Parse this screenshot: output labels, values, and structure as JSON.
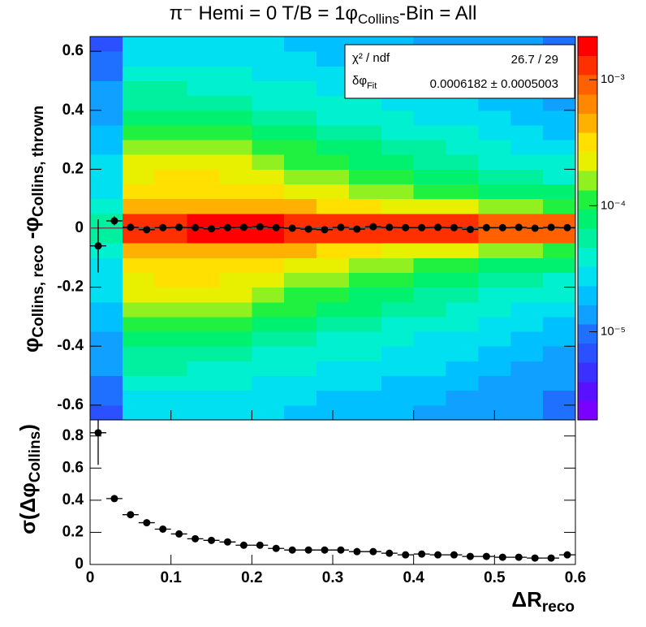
{
  "chart_data": [
    {
      "type": "heatmap",
      "title": [
        "π⁻ Hemi = 0 T/B = 1φ",
        "Collins",
        "-Bin = All"
      ],
      "ylabel": [
        "φ",
        "Collins, reco",
        " -φ",
        "Collins, thrown"
      ],
      "xlim": [
        0,
        0.6
      ],
      "ylim": [
        -0.65,
        0.65
      ],
      "xticks": [
        0,
        0.1,
        0.2,
        0.3,
        0.4,
        0.5,
        0.6
      ],
      "yticks": [
        -0.6,
        -0.4,
        -0.2,
        0,
        0.2,
        0.4,
        0.6
      ],
      "zlim": [
        2e-06,
        0.0022
      ],
      "zscale": "log",
      "zticks": [
        {
          "value": 1e-05,
          "label": "10⁻⁵"
        },
        {
          "value": 0.0001,
          "label": "10⁻⁴"
        },
        {
          "value": 0.001,
          "label": "10⁻³"
        }
      ],
      "palette": [
        "#7a00ff",
        "#5a10ff",
        "#3a30ff",
        "#2a50ff",
        "#2070ff",
        "#10a0ff",
        "#00c0ff",
        "#00e0f0",
        "#00f0d0",
        "#00f0a0",
        "#00f070",
        "#20f040",
        "#90f020",
        "#e8f000",
        "#ffe000",
        "#ffb000",
        "#ff8800",
        "#ff6000",
        "#ff3000",
        "#ff0000"
      ],
      "x_bins": [
        0,
        0.04,
        0.08,
        0.12,
        0.16,
        0.2,
        0.24,
        0.28,
        0.32,
        0.36,
        0.4,
        0.44,
        0.48,
        0.52,
        0.56,
        0.6
      ],
      "y_bins": [
        -0.65,
        -0.6,
        -0.55,
        -0.5,
        -0.45,
        -0.4,
        -0.35,
        -0.3,
        -0.25,
        -0.2,
        -0.15,
        -0.1,
        -0.05,
        0,
        0.05,
        0.1,
        0.15,
        0.2,
        0.25,
        0.3,
        0.35,
        0.4,
        0.45,
        0.5,
        0.55,
        0.6,
        0.65
      ],
      "z": [
        [
          8e-06,
          1e-05,
          1e-05,
          1.2e-05,
          1.5e-05,
          1.5e-05,
          2e-05,
          2e-05,
          2.5e-05,
          3e-05,
          3e-05,
          4e-05,
          5e-05,
          5e-05,
          4e-05,
          3e-05,
          3e-05,
          2.5e-05,
          2e-05,
          2e-05,
          1.5e-05,
          1.5e-05,
          1.2e-05,
          1e-05,
          1e-05,
          8e-06
        ],
        [
          3e-05,
          3e-05,
          4e-05,
          5e-05,
          6e-05,
          8e-05,
          0.0001,
          0.00015,
          0.0002,
          0.00025,
          0.0003,
          0.0004,
          0.0012,
          0.0012,
          0.0004,
          0.0003,
          0.00025,
          0.0002,
          0.00015,
          0.0001,
          8e-05,
          6e-05,
          5e-05,
          4e-05,
          3e-05,
          3e-05
        ],
        [
          3e-05,
          3e-05,
          4e-05,
          5e-05,
          6e-05,
          9e-05,
          0.00012,
          0.00018,
          0.00025,
          0.0003,
          0.00035,
          0.0005,
          0.0015,
          0.0015,
          0.0005,
          0.00035,
          0.0003,
          0.00025,
          0.00018,
          0.00012,
          9e-05,
          6e-05,
          5e-05,
          4e-05,
          3e-05,
          3e-05
        ],
        [
          3e-05,
          3e-05,
          4e-05,
          4.5e-05,
          6e-05,
          8e-05,
          0.00011,
          0.00016,
          0.00025,
          0.0003,
          0.00035,
          0.0005,
          0.0016,
          0.0016,
          0.0005,
          0.00035,
          0.0003,
          0.00025,
          0.00016,
          0.00011,
          8e-05,
          6e-05,
          4.5e-05,
          4e-05,
          3e-05,
          3e-05
        ],
        [
          2.5e-05,
          3e-05,
          3.5e-05,
          4e-05,
          5e-05,
          7e-05,
          0.0001,
          0.00015,
          0.0002,
          0.00025,
          0.00035,
          0.0005,
          0.0016,
          0.0016,
          0.0005,
          0.00035,
          0.00025,
          0.0002,
          0.00015,
          0.0001,
          7e-05,
          5e-05,
          4e-05,
          3.5e-05,
          3e-05,
          2.5e-05
        ],
        [
          2.5e-05,
          2.5e-05,
          3e-05,
          4e-05,
          4.5e-05,
          6e-05,
          8e-05,
          0.00012,
          0.00016,
          0.00022,
          0.0003,
          0.00045,
          0.0016,
          0.0016,
          0.00045,
          0.0003,
          0.00022,
          0.00016,
          0.00012,
          8e-05,
          6e-05,
          4.5e-05,
          4e-05,
          3e-05,
          2.5e-05,
          2.5e-05
        ],
        [
          2e-05,
          2.5e-05,
          3e-05,
          3.5e-05,
          4e-05,
          5e-05,
          7e-05,
          0.0001,
          0.00013,
          0.00018,
          0.00025,
          0.0004,
          0.0015,
          0.0015,
          0.0004,
          0.00025,
          0.00018,
          0.00013,
          0.0001,
          7e-05,
          5e-05,
          4e-05,
          3.5e-05,
          3e-05,
          2.5e-05,
          2e-05
        ],
        [
          2e-05,
          2e-05,
          2.5e-05,
          3e-05,
          4e-05,
          4.5e-05,
          6e-05,
          8e-05,
          0.00011,
          0.00015,
          0.0002,
          0.00035,
          0.0015,
          0.0015,
          0.00035,
          0.0002,
          0.00015,
          0.00011,
          8e-05,
          6e-05,
          4.5e-05,
          4e-05,
          3e-05,
          2.5e-05,
          2e-05,
          2e-05
        ],
        [
          2e-05,
          2e-05,
          2.5e-05,
          3e-05,
          3.5e-05,
          4e-05,
          5e-05,
          7e-05,
          9e-05,
          0.00012,
          0.00018,
          0.0003,
          0.0014,
          0.0014,
          0.0003,
          0.00018,
          0.00012,
          9e-05,
          7e-05,
          5e-05,
          4e-05,
          3.5e-05,
          3e-05,
          2.5e-05,
          2e-05,
          2e-05
        ],
        [
          1.8e-05,
          2e-05,
          2e-05,
          2.5e-05,
          3e-05,
          3.5e-05,
          4.5e-05,
          6e-05,
          7e-05,
          0.0001,
          0.00015,
          0.00025,
          0.0013,
          0.0013,
          0.00025,
          0.00015,
          0.0001,
          7e-05,
          6e-05,
          4.5e-05,
          3.5e-05,
          3e-05,
          2.5e-05,
          2e-05,
          2e-05,
          1.8e-05
        ],
        [
          1.5e-05,
          1.8e-05,
          2e-05,
          2.5e-05,
          2.5e-05,
          3e-05,
          4e-05,
          5e-05,
          6e-05,
          8e-05,
          0.00012,
          0.00022,
          0.0012,
          0.0012,
          0.00022,
          0.00012,
          8e-05,
          6e-05,
          5e-05,
          4e-05,
          3e-05,
          2.5e-05,
          2.5e-05,
          2e-05,
          1.8e-05,
          1.5e-05
        ],
        [
          1.5e-05,
          1.5e-05,
          2e-05,
          2e-05,
          2.5e-05,
          3e-05,
          3.5e-05,
          4e-05,
          5e-05,
          7e-05,
          0.0001,
          0.0002,
          0.0011,
          0.0011,
          0.0002,
          0.0001,
          7e-05,
          5e-05,
          4e-05,
          3.5e-05,
          3e-05,
          2.5e-05,
          2e-05,
          2e-05,
          1.5e-05,
          1.5e-05
        ],
        [
          1.2e-05,
          1.5e-05,
          1.5e-05,
          2e-05,
          2e-05,
          2.5e-05,
          3e-05,
          3.5e-05,
          4.5e-05,
          6e-05,
          9e-05,
          0.00018,
          0.001,
          0.001,
          0.00018,
          9e-05,
          6e-05,
          4.5e-05,
          3.5e-05,
          3e-05,
          2.5e-05,
          2e-05,
          2e-05,
          1.5e-05,
          1.5e-05,
          1.2e-05
        ],
        [
          1.2e-05,
          1.2e-05,
          1.5e-05,
          1.5e-05,
          2e-05,
          2e-05,
          2.5e-05,
          3e-05,
          4e-05,
          5e-05,
          8e-05,
          0.00015,
          0.0009,
          0.0009,
          0.00015,
          8e-05,
          5e-05,
          4e-05,
          3e-05,
          2.5e-05,
          2e-05,
          2e-05,
          1.5e-05,
          1.5e-05,
          1.2e-05,
          1.2e-05
        ],
        [
          1e-05,
          1e-05,
          1.2e-05,
          1.5e-05,
          1.5e-05,
          2e-05,
          2e-05,
          2.5e-05,
          3.5e-05,
          4.5e-05,
          7e-05,
          0.00013,
          0.0008,
          0.0008,
          0.00013,
          7e-05,
          4.5e-05,
          3.5e-05,
          2.5e-05,
          2e-05,
          2e-05,
          1.5e-05,
          1.5e-05,
          1.2e-05,
          1e-05,
          1e-05
        ]
      ],
      "fit": {
        "value": 0.0006182,
        "color": "#555555"
      },
      "points": {
        "color": "#000000",
        "x": [
          0.01,
          0.03,
          0.05,
          0.07,
          0.09,
          0.11,
          0.13,
          0.15,
          0.17,
          0.19,
          0.21,
          0.23,
          0.25,
          0.27,
          0.29,
          0.31,
          0.33,
          0.35,
          0.37,
          0.39,
          0.41,
          0.43,
          0.45,
          0.47,
          0.49,
          0.51,
          0.53,
          0.55,
          0.57,
          0.59
        ],
        "y": [
          -0.06,
          0.025,
          0.003,
          -0.005,
          0.002,
          0.003,
          0.002,
          -0.002,
          0.002,
          0.003,
          0.005,
          0.002,
          0,
          -0.003,
          -0.005,
          0.003,
          -0.003,
          0.005,
          0.003,
          0.002,
          0.002,
          0.003,
          0.002,
          -0.004,
          0.002,
          0.002,
          0.003,
          0,
          0.003,
          0.002
        ],
        "yerr": [
          0.09,
          0.015,
          0.005,
          0.005,
          0.005,
          0.005,
          0.005,
          0.005,
          0.005,
          0.005,
          0.005,
          0.005,
          0.005,
          0.005,
          0.005,
          0.005,
          0.005,
          0.005,
          0.005,
          0.005,
          0.005,
          0.005,
          0.005,
          0.005,
          0.005,
          0.005,
          0.005,
          0.005,
          0.005,
          0.005
        ],
        "xerr": 0.01
      },
      "stats": {
        "chi_label": "χ² / ndf",
        "chi_value": "26.7 / 29",
        "fit_label": [
          "δφ",
          "Fit"
        ],
        "fit_value": "0.0006182 ± 0.0005003"
      }
    },
    {
      "type": "errorbar",
      "xlabel": [
        "ΔR",
        "reco"
      ],
      "ylabel": [
        "σ(Δφ",
        "Collins",
        ")"
      ],
      "xlim": [
        0,
        0.6
      ],
      "ylim": [
        0,
        0.9
      ],
      "xticks": [
        0,
        0.1,
        0.2,
        0.3,
        0.4,
        0.5,
        0.6
      ],
      "yticks": [
        0,
        0.2,
        0.4,
        0.6,
        0.8
      ],
      "points": {
        "color": "#000000",
        "x": [
          0.01,
          0.03,
          0.05,
          0.07,
          0.09,
          0.11,
          0.13,
          0.15,
          0.17,
          0.19,
          0.21,
          0.23,
          0.25,
          0.27,
          0.29,
          0.31,
          0.33,
          0.35,
          0.37,
          0.39,
          0.41,
          0.43,
          0.45,
          0.47,
          0.49,
          0.51,
          0.53,
          0.55,
          0.57,
          0.59
        ],
        "y": [
          0.82,
          0.41,
          0.31,
          0.26,
          0.22,
          0.19,
          0.16,
          0.15,
          0.14,
          0.12,
          0.12,
          0.1,
          0.09,
          0.09,
          0.09,
          0.09,
          0.08,
          0.08,
          0.07,
          0.06,
          0.065,
          0.06,
          0.06,
          0.05,
          0.05,
          0.045,
          0.045,
          0.04,
          0.04,
          0.06
        ],
        "yerr": [
          0.2,
          0.015,
          0.008,
          0.006,
          0.005,
          0.005,
          0.005,
          0.005,
          0.005,
          0.005,
          0.005,
          0.005,
          0.005,
          0.005,
          0.005,
          0.005,
          0.005,
          0.005,
          0.005,
          0.005,
          0.005,
          0.005,
          0.005,
          0.005,
          0.005,
          0.005,
          0.005,
          0.005,
          0.005,
          0.005
        ],
        "xerr": 0.01
      }
    }
  ]
}
